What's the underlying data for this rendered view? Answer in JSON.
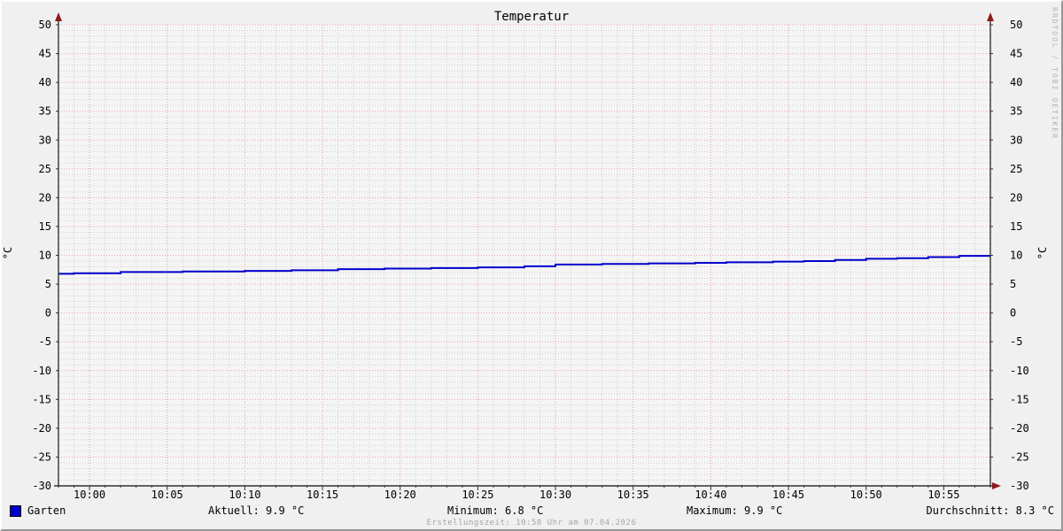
{
  "title": "Temperatur",
  "watermark": "RRDTOOL / TOBI OETIKER",
  "footer": {
    "creation_text": "Erstellungszeit: 10:58 Uhr am 07.04.2026"
  },
  "legend": {
    "series_label": "Garten",
    "series_color": "#0000cc",
    "aktuell": "Aktuell: 9.9 °C",
    "minimum": "Minimum: 6.8 °C",
    "maximum": "Maximum: 9.9 °C",
    "durchschnitt": "Durchschnitt: 8.3 °C"
  },
  "colors": {
    "background": "#f0f0f0",
    "canvas": "#f5f5f5",
    "axis": "#333333",
    "arrow": "#8e1b1b",
    "grid_major": "#ef9c9c",
    "grid_minor": "#cdcdcd",
    "line": "#0000cc",
    "text": "#000000"
  },
  "chart_data": {
    "type": "line",
    "title": "Temperatur",
    "ylabel": "°C",
    "ylabel_right": "°C",
    "ylim": [
      -30,
      50
    ],
    "y_tick_major": 5,
    "y_tick_minor": 1,
    "y_tick_labels": [
      50,
      45,
      40,
      35,
      30,
      25,
      20,
      15,
      10,
      5,
      0,
      -5,
      -10,
      -15,
      -20,
      -25,
      -30
    ],
    "x_window_start": "09:58",
    "x_window_end": "10:58",
    "x_tick_minor_minutes": 1,
    "x_tick_labels": [
      "10:00",
      "10:05",
      "10:10",
      "10:15",
      "10:20",
      "10:25",
      "10:30",
      "10:35",
      "10:40",
      "10:45",
      "10:50",
      "10:55"
    ],
    "grid": true,
    "legend_position": "bottom",
    "series": [
      {
        "name": "Garten",
        "color": "#0000cc",
        "stats": {
          "aktuell": 9.9,
          "minimum": 6.8,
          "maximum": 9.9,
          "durchschnitt": 8.3
        },
        "points": [
          {
            "t": "09:58",
            "v": 6.8
          },
          {
            "t": "09:59",
            "v": 6.9
          },
          {
            "t": "10:02",
            "v": 7.1
          },
          {
            "t": "10:06",
            "v": 7.2
          },
          {
            "t": "10:10",
            "v": 7.3
          },
          {
            "t": "10:13",
            "v": 7.4
          },
          {
            "t": "10:16",
            "v": 7.6
          },
          {
            "t": "10:19",
            "v": 7.7
          },
          {
            "t": "10:22",
            "v": 7.8
          },
          {
            "t": "10:25",
            "v": 7.9
          },
          {
            "t": "10:28",
            "v": 8.1
          },
          {
            "t": "10:30",
            "v": 8.4
          },
          {
            "t": "10:33",
            "v": 8.5
          },
          {
            "t": "10:36",
            "v": 8.6
          },
          {
            "t": "10:39",
            "v": 8.7
          },
          {
            "t": "10:41",
            "v": 8.8
          },
          {
            "t": "10:44",
            "v": 8.9
          },
          {
            "t": "10:46",
            "v": 9.0
          },
          {
            "t": "10:48",
            "v": 9.2
          },
          {
            "t": "10:50",
            "v": 9.4
          },
          {
            "t": "10:52",
            "v": 9.5
          },
          {
            "t": "10:54",
            "v": 9.7
          },
          {
            "t": "10:56",
            "v": 9.9
          },
          {
            "t": "10:58",
            "v": 9.9
          }
        ]
      }
    ]
  }
}
